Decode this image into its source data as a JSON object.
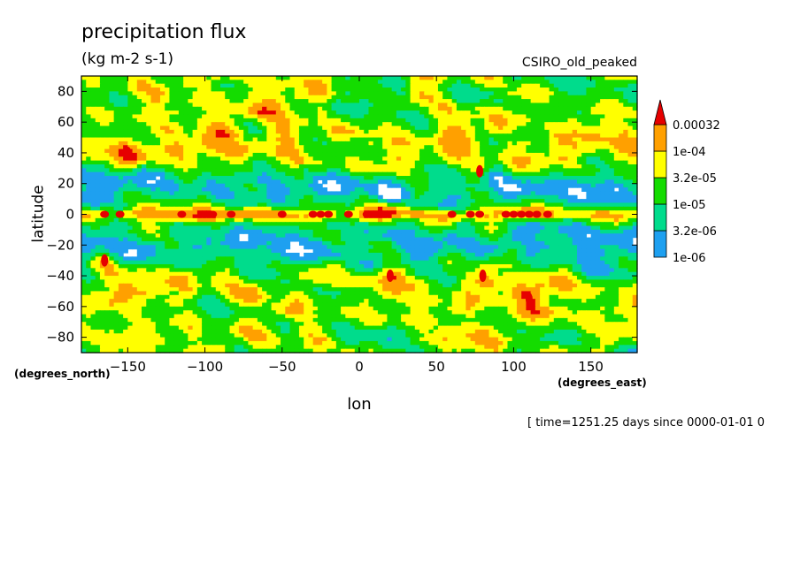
{
  "chart_data": {
    "type": "heatmap",
    "title": "precipitation flux",
    "units": "(kg m-2 s-1)",
    "model_label": "CSIRO_old_peaked",
    "xlabel": "lon",
    "ylabel": "latitude",
    "x_unit_label": "(degrees_east)",
    "y_unit_label": "(degrees_north)",
    "xlim": [
      -180,
      180
    ],
    "ylim": [
      -90,
      90
    ],
    "x_ticks": [
      -150,
      -100,
      -50,
      0,
      50,
      100,
      150
    ],
    "y_ticks": [
      80,
      60,
      40,
      20,
      0,
      -20,
      -40,
      -60,
      -80
    ],
    "colorbar": {
      "levels": [
        "1e-06",
        "3.2e-06",
        "1e-05",
        "3.2e-05",
        "1e-04",
        "0.00032"
      ],
      "colors": [
        "#1ea0f0",
        "#00dc8c",
        "#14dc00",
        "#ffff00",
        "#ffa000",
        "#e60000"
      ],
      "below_color": "#ffffff",
      "extend": "max"
    },
    "footer": "[ time=1251.25 days since 0000-01-01 0",
    "features": {
      "itcz_latitude": 0,
      "itcz_peaks_lon": [
        -165,
        -155,
        -115,
        -95,
        -83,
        -50,
        -30,
        -25,
        -20,
        -7,
        5,
        15,
        60,
        72,
        78,
        95,
        100,
        105,
        110,
        115,
        122
      ],
      "dry_subtropical_bands_lat": [
        [
          12,
          22
        ],
        [
          -12,
          -30
        ]
      ],
      "storm_track_peaks": [
        {
          "lon": 78,
          "lat": 28
        },
        {
          "lon": 80,
          "lat": -40
        },
        {
          "lon": 110,
          "lat": -55
        },
        {
          "lon": 20,
          "lat": -40
        },
        {
          "lon": -165,
          "lat": -30
        },
        {
          "lon": -150,
          "lat": 40
        }
      ]
    }
  }
}
